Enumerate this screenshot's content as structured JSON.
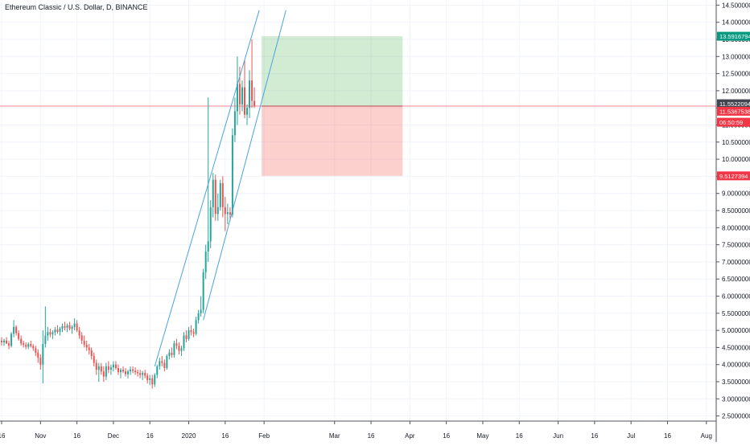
{
  "chart_data": {
    "type": "candlestick",
    "title": "Ethereum Classic / U.S. Dollar, D, BINANCE",
    "y_axis": {
      "min": 2.35,
      "max": 14.65,
      "ticks": [
        "2.5000000",
        "3.0000000",
        "3.5000000",
        "4.0000000",
        "4.5000000",
        "5.0000000",
        "5.5000000",
        "6.0000000",
        "6.5000000",
        "7.0000000",
        "7.5000000",
        "8.0000000",
        "8.5000000",
        "9.0000000",
        "9.5000000",
        "10.0000000",
        "10.5000000",
        "11.0000000",
        "11.5000000",
        "12.0000000",
        "12.5000000",
        "13.0000000",
        "13.5000000",
        "14.0000000",
        "14.5000000"
      ],
      "position": "right"
    },
    "x_axis": {
      "ticks": [
        {
          "label": "16",
          "day": 0
        },
        {
          "label": "Nov",
          "day": 16
        },
        {
          "label": "16",
          "day": 31
        },
        {
          "label": "Dec",
          "day": 46
        },
        {
          "label": "16",
          "day": 61
        },
        {
          "label": "2020",
          "day": 77
        },
        {
          "label": "16",
          "day": 92
        },
        {
          "label": "Feb",
          "day": 108
        },
        {
          "label": "Mar",
          "day": 137
        },
        {
          "label": "16",
          "day": 152
        },
        {
          "label": "Apr",
          "day": 168
        },
        {
          "label": "16",
          "day": 183
        },
        {
          "label": "May",
          "day": 198
        },
        {
          "label": "16",
          "day": 213
        },
        {
          "label": "Jun",
          "day": 229
        },
        {
          "label": "16",
          "day": 244
        },
        {
          "label": "Jul",
          "day": 259
        },
        {
          "label": "16",
          "day": 274
        },
        {
          "label": "Aug",
          "day": 290
        }
      ]
    },
    "candles": [
      [
        4.7,
        4.8,
        4.55,
        4.65
      ],
      [
        4.65,
        4.75,
        4.55,
        4.7
      ],
      [
        4.7,
        4.8,
        4.6,
        4.62
      ],
      [
        4.62,
        4.7,
        4.45,
        4.55
      ],
      [
        4.55,
        4.95,
        4.5,
        4.9
      ],
      [
        4.9,
        5.3,
        4.8,
        5.1
      ],
      [
        5.1,
        5.15,
        4.85,
        4.92
      ],
      [
        4.92,
        5.0,
        4.7,
        4.75
      ],
      [
        4.75,
        4.85,
        4.55,
        4.62
      ],
      [
        4.62,
        4.7,
        4.5,
        4.58
      ],
      [
        4.58,
        4.65,
        4.45,
        4.52
      ],
      [
        4.52,
        4.65,
        4.45,
        4.6
      ],
      [
        4.6,
        4.7,
        4.5,
        4.54
      ],
      [
        4.54,
        4.6,
        4.4,
        4.48
      ],
      [
        4.48,
        4.55,
        4.25,
        4.35
      ],
      [
        4.35,
        4.45,
        4.05,
        4.2
      ],
      [
        4.2,
        4.3,
        3.85,
        4.0
      ],
      [
        4.0,
        5.0,
        3.45,
        4.6
      ],
      [
        4.6,
        5.7,
        4.5,
        4.85
      ],
      [
        4.85,
        5.1,
        4.7,
        4.95
      ],
      [
        4.95,
        5.05,
        4.8,
        4.88
      ],
      [
        4.88,
        5.0,
        4.75,
        4.94
      ],
      [
        4.94,
        5.1,
        4.85,
        5.02
      ],
      [
        5.02,
        5.15,
        4.9,
        4.96
      ],
      [
        4.96,
        5.1,
        4.85,
        5.05
      ],
      [
        5.05,
        5.2,
        4.95,
        5.12
      ],
      [
        5.12,
        5.25,
        5.0,
        5.08
      ],
      [
        5.08,
        5.2,
        4.95,
        5.15
      ],
      [
        5.15,
        5.25,
        5.0,
        5.05
      ],
      [
        5.05,
        5.15,
        4.9,
        5.1
      ],
      [
        5.1,
        5.35,
        5.0,
        5.2
      ],
      [
        5.2,
        5.3,
        4.95,
        5.0
      ],
      [
        5.0,
        5.1,
        4.75,
        4.85
      ],
      [
        4.85,
        4.95,
        4.6,
        4.7
      ],
      [
        4.7,
        4.85,
        4.5,
        4.58
      ],
      [
        4.58,
        4.7,
        4.4,
        4.5
      ],
      [
        4.5,
        4.6,
        4.3,
        4.42
      ],
      [
        4.42,
        4.5,
        4.15,
        4.25
      ],
      [
        4.25,
        4.35,
        3.95,
        4.05
      ],
      [
        4.05,
        4.15,
        3.7,
        3.85
      ],
      [
        3.85,
        4.05,
        3.5,
        3.95
      ],
      [
        3.95,
        4.05,
        3.7,
        3.8
      ],
      [
        3.8,
        3.95,
        3.5,
        3.65
      ],
      [
        3.65,
        4.05,
        3.55,
        3.95
      ],
      [
        3.95,
        4.1,
        3.75,
        3.85
      ],
      [
        3.85,
        4.0,
        3.7,
        3.92
      ],
      [
        3.92,
        4.1,
        3.8,
        4.0
      ],
      [
        4.0,
        4.1,
        3.85,
        3.9
      ],
      [
        3.9,
        4.0,
        3.7,
        3.78
      ],
      [
        3.78,
        3.9,
        3.6,
        3.85
      ],
      [
        3.85,
        3.95,
        3.75,
        3.8
      ],
      [
        3.8,
        3.9,
        3.65,
        3.72
      ],
      [
        3.72,
        3.85,
        3.6,
        3.8
      ],
      [
        3.8,
        3.95,
        3.7,
        3.86
      ],
      [
        3.86,
        3.95,
        3.75,
        3.82
      ],
      [
        3.82,
        3.92,
        3.7,
        3.78
      ],
      [
        3.78,
        3.85,
        3.65,
        3.75
      ],
      [
        3.75,
        3.85,
        3.6,
        3.7
      ],
      [
        3.7,
        3.82,
        3.55,
        3.76
      ],
      [
        3.76,
        3.85,
        3.6,
        3.68
      ],
      [
        3.68,
        3.75,
        3.45,
        3.55
      ],
      [
        3.55,
        3.7,
        3.4,
        3.6
      ],
      [
        3.6,
        3.7,
        3.3,
        3.42
      ],
      [
        3.42,
        3.75,
        3.35,
        3.7
      ],
      [
        3.7,
        4.0,
        3.6,
        3.95
      ],
      [
        3.95,
        4.2,
        3.85,
        4.1
      ],
      [
        4.1,
        4.25,
        3.95,
        4.05
      ],
      [
        4.05,
        4.15,
        3.8,
        3.9
      ],
      [
        3.9,
        4.3,
        3.85,
        4.25
      ],
      [
        4.25,
        4.45,
        4.15,
        4.35
      ],
      [
        4.35,
        4.5,
        4.2,
        4.28
      ],
      [
        4.28,
        4.7,
        4.2,
        4.62
      ],
      [
        4.62,
        4.75,
        4.45,
        4.55
      ],
      [
        4.55,
        4.65,
        4.3,
        4.4
      ],
      [
        4.4,
        4.55,
        4.25,
        4.48
      ],
      [
        4.48,
        4.95,
        4.4,
        4.85
      ],
      [
        4.85,
        5.0,
        4.65,
        4.75
      ],
      [
        4.75,
        5.1,
        4.7,
        5.0
      ],
      [
        5.0,
        5.15,
        4.85,
        4.95
      ],
      [
        4.95,
        5.05,
        4.8,
        4.9
      ],
      [
        4.9,
        5.4,
        4.85,
        5.3
      ],
      [
        5.3,
        5.6,
        5.2,
        5.5
      ],
      [
        5.5,
        6.0,
        5.4,
        5.6
      ],
      [
        5.6,
        6.8,
        5.5,
        6.7
      ],
      [
        6.7,
        7.5,
        6.5,
        7.3
      ],
      [
        7.3,
        11.8,
        7.0,
        7.6
      ],
      [
        7.6,
        8.8,
        7.4,
        8.6
      ],
      [
        8.6,
        9.6,
        8.3,
        9.4
      ],
      [
        9.4,
        9.55,
        8.2,
        8.4
      ],
      [
        8.4,
        9.0,
        8.2,
        8.6
      ],
      [
        8.6,
        9.4,
        8.5,
        9.3
      ],
      [
        9.3,
        9.5,
        8.3,
        8.6
      ],
      [
        8.6,
        8.9,
        7.9,
        8.4
      ],
      [
        8.4,
        8.7,
        8.1,
        8.45
      ],
      [
        8.45,
        8.6,
        8.2,
        8.38
      ],
      [
        8.38,
        10.9,
        8.3,
        10.7
      ],
      [
        10.7,
        11.8,
        10.5,
        11.4
      ],
      [
        11.4,
        13.0,
        11.0,
        12.2
      ],
      [
        12.2,
        12.7,
        11.3,
        11.6
      ],
      [
        11.6,
        12.3,
        11.4,
        12.1
      ],
      [
        12.1,
        12.9,
        11.2,
        11.3
      ],
      [
        11.3,
        11.6,
        11.0,
        11.5
      ],
      [
        11.5,
        12.6,
        11.2,
        12.3
      ],
      [
        12.3,
        13.5,
        11.5,
        11.7
      ],
      [
        11.7,
        12.1,
        11.5,
        11.55
      ]
    ],
    "channel_lines": [
      {
        "from": [
          63,
          3.95
        ],
        "to": [
          106,
          14.35
        ]
      },
      {
        "from": [
          83,
          5.3
        ],
        "to": [
          117,
          14.35
        ]
      }
    ],
    "position_tool": {
      "type": "long",
      "entry": 11.5522094,
      "target": 13.5916794,
      "stop": 9.5127394,
      "start_day": 107,
      "end_day": 165,
      "profit_color": "#4caf50",
      "loss_color": "#f44336"
    },
    "horizontal_line": {
      "price": 11.5522094,
      "color": "#f23645"
    },
    "price_labels": [
      {
        "value": "13.5916794",
        "price": 13.5916794,
        "bg": "#089981",
        "fg": "#ffffff"
      },
      {
        "value": "11.5522094",
        "price": 11.62,
        "bg": "#434651",
        "fg": "#ffffff"
      },
      {
        "value": "11.5367538",
        "price": 11.4,
        "bg": "#f23645",
        "fg": "#ffffff"
      },
      {
        "value": "06:50:59",
        "price": 11.08,
        "bg": "#f23645",
        "fg": "#ffffff"
      },
      {
        "value": "9.5127394",
        "price": 9.5127394,
        "bg": "#f23645",
        "fg": "#ffffff"
      }
    ],
    "colors": {
      "up": "#26a69a",
      "down": "#ef5350",
      "grid": "#f0f3fa",
      "axis_text": "#131722",
      "channel": "#4aa3df"
    },
    "grid": true
  }
}
